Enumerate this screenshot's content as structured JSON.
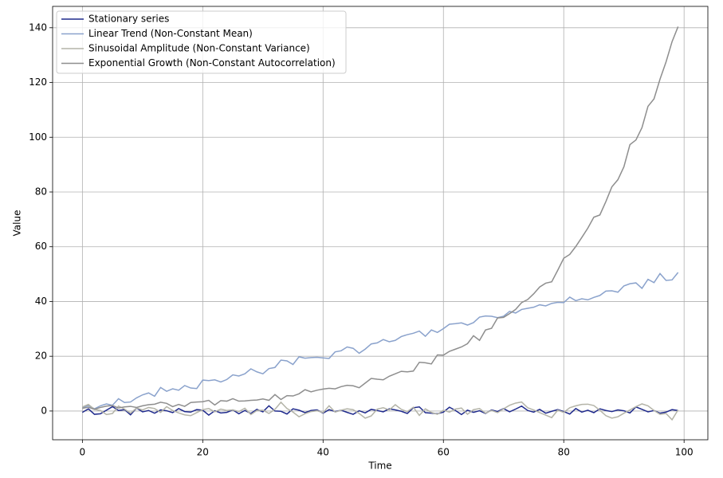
{
  "chart_data": {
    "type": "line",
    "x_label": "Time",
    "y_label": "Value",
    "x": [
      0,
      1,
      2,
      3,
      4,
      5,
      6,
      7,
      8,
      9,
      10,
      11,
      12,
      13,
      14,
      15,
      16,
      17,
      18,
      19,
      20,
      21,
      22,
      23,
      24,
      25,
      26,
      27,
      28,
      29,
      30,
      31,
      32,
      33,
      34,
      35,
      36,
      37,
      38,
      39,
      40,
      41,
      42,
      43,
      44,
      45,
      46,
      47,
      48,
      49,
      50,
      51,
      52,
      53,
      54,
      55,
      56,
      57,
      58,
      59,
      60,
      61,
      62,
      63,
      64,
      65,
      66,
      67,
      68,
      69,
      70,
      71,
      72,
      73,
      74,
      75,
      76,
      77,
      78,
      79,
      80,
      81,
      82,
      83,
      84,
      85,
      86,
      87,
      88,
      89,
      90,
      91,
      92,
      93,
      94,
      95,
      96,
      97,
      98,
      99
    ],
    "series": [
      {
        "name": "Stationary series",
        "color": "#1f2a8c",
        "values": [
          -0.5,
          0.8,
          -1.2,
          -1.0,
          0.3,
          1.6,
          0.2,
          0.5,
          -1.4,
          1.1,
          -0.3,
          0.2,
          -0.8,
          0.4,
          0.1,
          -0.6,
          0.9,
          -0.2,
          -0.4,
          0.5,
          0.3,
          -1.5,
          0.1,
          -0.7,
          -0.5,
          0.4,
          -1.0,
          0.2,
          -0.9,
          0.6,
          -0.3,
          1.9,
          0.0,
          -0.1,
          -1.1,
          0.8,
          0.3,
          -0.6,
          0.2,
          0.4,
          -0.8,
          0.5,
          -0.2,
          0.3,
          -0.5,
          -1.2,
          0.1,
          -0.7,
          0.6,
          0.2,
          -0.3,
          0.8,
          0.4,
          -0.1,
          -0.9,
          1.2,
          1.5,
          -0.6,
          -0.8,
          -1.0,
          -0.4,
          1.4,
          0.2,
          -1.3,
          0.3,
          -0.5,
          0.1,
          -0.9,
          0.4,
          -0.2,
          0.9,
          -0.3,
          0.7,
          1.8,
          0.2,
          -0.4,
          0.6,
          -0.8,
          -0.1,
          0.5,
          -0.2,
          -1.1,
          0.9,
          -0.4,
          0.3,
          -0.6,
          0.8,
          0.2,
          -0.2,
          0.4,
          0.1,
          -0.7,
          1.5,
          0.6,
          -0.3,
          0.2,
          -0.8,
          -0.4,
          0.5,
          0.2
        ]
      },
      {
        "name": "Linear Trend (Non-Constant Mean)",
        "color": "#8aa2cc",
        "values": [
          1.2,
          2.0,
          0.8,
          1.9,
          2.6,
          2.1,
          4.5,
          3.1,
          3.3,
          4.8,
          5.9,
          6.6,
          5.4,
          8.6,
          7.2,
          8.1,
          7.6,
          9.3,
          8.4,
          8.2,
          11.3,
          11.1,
          11.4,
          10.6,
          11.5,
          13.2,
          12.8,
          13.6,
          15.4,
          14.3,
          13.6,
          15.5,
          15.9,
          18.6,
          18.3,
          17.0,
          19.8,
          19.3,
          19.5,
          19.6,
          19.4,
          19.2,
          21.6,
          22.0,
          23.4,
          22.9,
          21.1,
          22.6,
          24.5,
          24.9,
          26.1,
          25.3,
          25.8,
          27.2,
          27.9,
          28.4,
          29.2,
          27.3,
          29.6,
          28.7,
          30.1,
          31.7,
          31.9,
          32.2,
          31.4,
          32.3,
          34.3,
          34.7,
          34.6,
          34.1,
          34.6,
          36.4,
          35.8,
          37.1,
          37.5,
          37.9,
          38.8,
          38.4,
          39.3,
          39.7,
          39.6,
          41.6,
          40.3,
          41.0,
          40.6,
          41.5,
          42.2,
          43.8,
          43.9,
          43.4,
          45.7,
          46.5,
          46.8,
          44.8,
          48.1,
          46.9,
          50.2,
          47.7,
          47.9,
          50.6
        ]
      },
      {
        "name": "Sinusoidal Amplitude (Non-Constant Variance)",
        "color": "#b4b4a8",
        "values": [
          1.5,
          2.4,
          0.6,
          0.2,
          -1.3,
          -0.9,
          1.8,
          0.7,
          -0.8,
          1.1,
          0.4,
          1.3,
          0.9,
          -0.5,
          1.6,
          0.2,
          -0.7,
          -1.4,
          -1.7,
          -0.6,
          0.5,
          0.9,
          -0.3,
          0.7,
          0.2,
          0.4,
          -0.2,
          1.0,
          -1.3,
          0.2,
          0.3,
          -0.9,
          0.6,
          3.2,
          0.9,
          -0.4,
          -2.1,
          -1.0,
          -0.2,
          0.1,
          -0.6,
          1.9,
          -0.4,
          0.3,
          0.8,
          0.5,
          -0.9,
          -2.6,
          -1.8,
          0.7,
          1.2,
          0.4,
          2.3,
          0.6,
          -0.2,
          1.4,
          -1.6,
          0.8,
          -0.5,
          -1.2,
          0.3,
          -0.4,
          0.7,
          1.1,
          -1.2,
          0.5,
          0.9,
          -0.8,
          0.2,
          -0.6,
          0.8,
          2.1,
          2.9,
          3.3,
          1.2,
          0.4,
          -0.6,
          -1.5,
          -2.4,
          0.3,
          -0.5,
          1.2,
          1.9,
          2.4,
          2.5,
          2.0,
          0.3,
          -1.7,
          -2.6,
          -2.1,
          -0.8,
          0.4,
          1.6,
          2.6,
          1.9,
          0.2,
          -1.2,
          -0.9,
          -3.2,
          0.4
        ]
      },
      {
        "name": "Exponential Growth (Non-Constant Autocorrelation)",
        "color": "#8e8e8e",
        "values": [
          1.0,
          1.4,
          0.6,
          1.3,
          1.8,
          2.0,
          1.1,
          1.5,
          1.7,
          1.3,
          1.9,
          2.3,
          2.5,
          3.2,
          2.8,
          1.6,
          2.4,
          1.7,
          3.1,
          3.3,
          3.4,
          3.9,
          2.2,
          3.8,
          3.6,
          4.5,
          3.6,
          3.7,
          3.9,
          4.0,
          4.4,
          3.9,
          6.0,
          4.2,
          5.6,
          5.5,
          6.3,
          7.8,
          7.0,
          7.6,
          8.0,
          8.3,
          8.1,
          8.9,
          9.4,
          9.2,
          8.5,
          10.2,
          11.9,
          11.6,
          11.4,
          12.7,
          13.6,
          14.5,
          14.3,
          14.6,
          17.8,
          17.6,
          17.2,
          20.5,
          20.4,
          21.8,
          22.6,
          23.4,
          24.6,
          27.5,
          25.8,
          29.6,
          30.2,
          34.0,
          34.2,
          35.6,
          37.1,
          39.6,
          40.7,
          42.8,
          45.3,
          46.7,
          47.2,
          51.4,
          55.8,
          57.2,
          60.1,
          63.4,
          66.8,
          70.8,
          71.6,
          76.5,
          81.9,
          84.5,
          89.2,
          97.3,
          99.0,
          103.5,
          111.3,
          114.0,
          121.2,
          127.5,
          134.9,
          140.4
        ]
      }
    ],
    "xlim": [
      -4.95,
      103.95
    ],
    "ylim": [
      -10.5,
      147.8
    ],
    "xticks": [
      0,
      20,
      40,
      60,
      80,
      100
    ],
    "yticks": [
      0,
      20,
      40,
      60,
      80,
      100,
      120,
      140
    ],
    "grid": true,
    "legend": "upper left"
  }
}
